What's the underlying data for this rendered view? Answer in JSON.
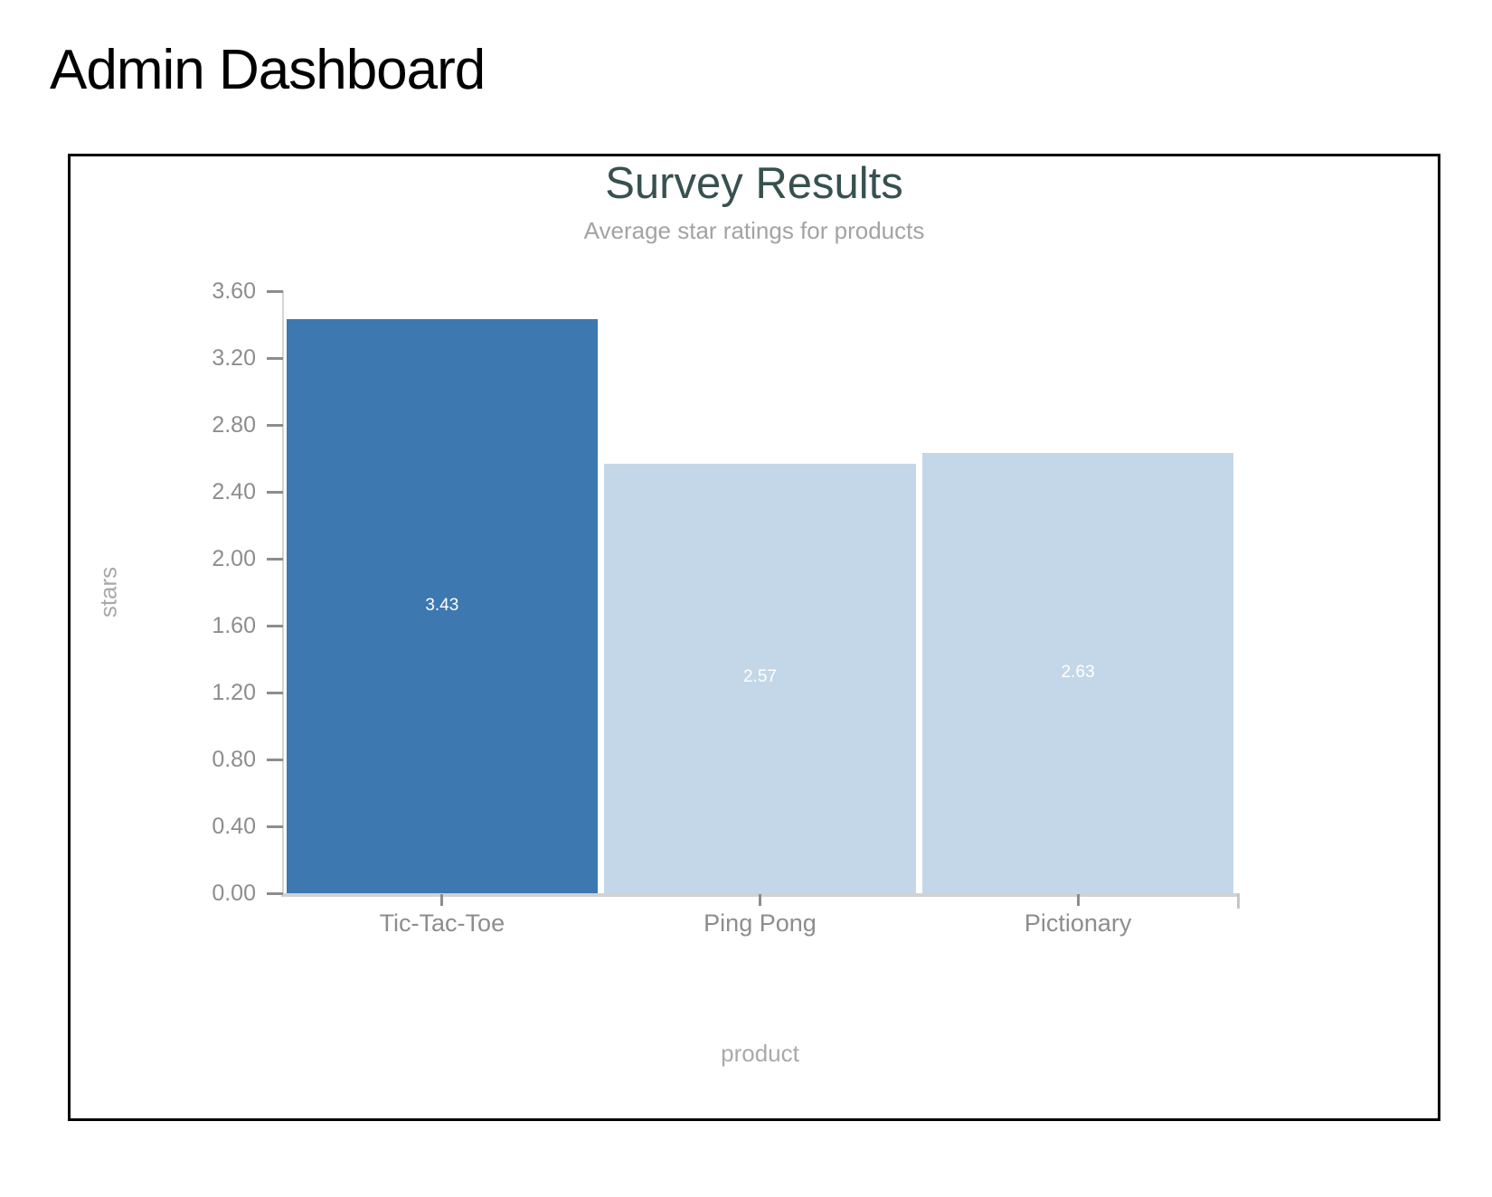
{
  "page": {
    "title": "Admin Dashboard"
  },
  "chart_data": {
    "type": "bar",
    "title": "Survey Results",
    "subtitle": "Average star ratings for products",
    "xlabel": "product",
    "ylabel": "stars",
    "categories": [
      "Tic-Tac-Toe",
      "Ping Pong",
      "Pictionary"
    ],
    "values": [
      3.43,
      2.57,
      2.63
    ],
    "bar_value_labels": [
      "3.43",
      "2.57",
      "2.63"
    ],
    "ylim": [
      0,
      3.6
    ],
    "ytick_labels": [
      "0.00",
      "0.40",
      "0.80",
      "1.20",
      "1.60",
      "2.00",
      "2.40",
      "2.80",
      "3.20",
      "3.60"
    ],
    "grid": false,
    "legend": false,
    "colors": {
      "highlight_bar": "#3e78b0",
      "base_bar": "#c4d7e8",
      "bar_colors": [
        "#3e78b0",
        "#c4d7e8",
        "#c4d7e8"
      ],
      "title_text": "#37514f",
      "subtitle_text": "#a3a3a3",
      "axis_text": "#8d8d8d",
      "axis_title_text": "#a9a9a9",
      "axis_line": "#d2d2d2",
      "bar_value_text": "#ffffff"
    }
  }
}
